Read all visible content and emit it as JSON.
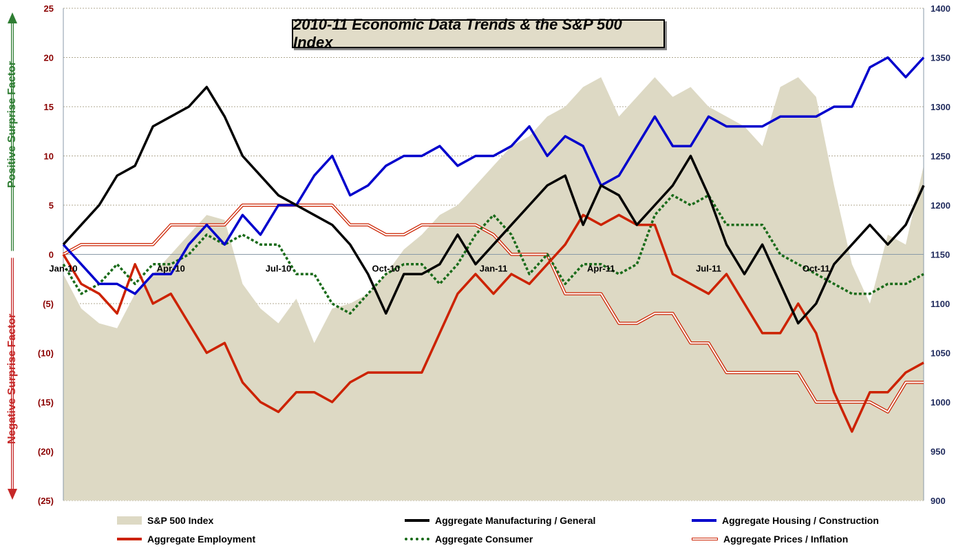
{
  "title": "2010-11 Economic Data Trends & the S&P 500 Index",
  "left_axis_positive_label": "Positive Surprise Factor",
  "left_axis_negative_label": "Negative Surprise Factor",
  "colors": {
    "sp500_fill": "#ddd9c4",
    "manufacturing": "#000000",
    "housing": "#0000cc",
    "employment": "#cc2200",
    "consumer": "#1a6b1a",
    "prices": "#cc2200",
    "positive_axis": "#2e7d32",
    "negative_axis": "#c62828",
    "left_ticks": "#8b0000",
    "right_ticks": "#1f2a5c"
  },
  "chart_data": {
    "type": "line",
    "x_tick_labels": [
      "Jan-10",
      "Apr-10",
      "Jul-10",
      "Oct-10",
      "Jan-11",
      "Apr-11",
      "Jul-11",
      "Oct-11"
    ],
    "y_left_ticks": [
      "25",
      "20",
      "15",
      "10",
      "5",
      "0",
      "(5)",
      "(10)",
      "(15)",
      "(20)",
      "(25)"
    ],
    "y_left_range": [
      -25,
      25
    ],
    "y_right_ticks": [
      "1400",
      "1350",
      "1300",
      "1250",
      "1200",
      "1150",
      "1100",
      "1050",
      "1000",
      "950",
      "900"
    ],
    "y_right_range": [
      900,
      1400
    ],
    "x_range_months": [
      0,
      24
    ],
    "series": [
      {
        "name": "S&P 500 Index",
        "type": "area",
        "axis": "right",
        "x": [
          0,
          0.5,
          1,
          1.5,
          2,
          2.5,
          3,
          3.5,
          4,
          4.5,
          5,
          5.5,
          6,
          6.5,
          7,
          7.5,
          8,
          8.5,
          9,
          9.5,
          10,
          10.5,
          11,
          11.5,
          12,
          12.5,
          13,
          13.5,
          14,
          14.5,
          15,
          15.5,
          16,
          16.5,
          17,
          17.5,
          18,
          18.5,
          19,
          19.5,
          20,
          20.5,
          21,
          21.5,
          22,
          22.5,
          23,
          23.5,
          24
        ],
        "values": [
          1130,
          1095,
          1080,
          1075,
          1110,
          1130,
          1150,
          1170,
          1190,
          1185,
          1120,
          1095,
          1080,
          1105,
          1060,
          1095,
          1100,
          1110,
          1130,
          1155,
          1170,
          1190,
          1200,
          1220,
          1240,
          1260,
          1270,
          1290,
          1300,
          1320,
          1330,
          1290,
          1310,
          1330,
          1310,
          1320,
          1300,
          1290,
          1280,
          1260,
          1320,
          1330,
          1310,
          1220,
          1140,
          1100,
          1170,
          1160,
          1240
        ]
      },
      {
        "name": "Aggregate Manufacturing / General",
        "axis": "left",
        "x": [
          0,
          0.5,
          1,
          1.5,
          2,
          2.5,
          3,
          3.5,
          4,
          4.5,
          5,
          5.5,
          6,
          6.5,
          7,
          7.5,
          8,
          8.5,
          9,
          9.5,
          10,
          10.5,
          11,
          11.5,
          12,
          12.5,
          13,
          13.5,
          14,
          14.5,
          15,
          15.5,
          16,
          16.5,
          17,
          17.5,
          18,
          18.5,
          19,
          19.5,
          20,
          20.5,
          21,
          21.5,
          22,
          22.5,
          23,
          23.5,
          24
        ],
        "values": [
          1,
          3,
          5,
          8,
          9,
          13,
          14,
          15,
          17,
          14,
          10,
          8,
          6,
          5,
          4,
          3,
          1,
          -2,
          -6,
          -2,
          -2,
          -1,
          2,
          -1,
          1,
          3,
          5,
          7,
          8,
          3,
          7,
          6,
          3,
          5,
          7,
          10,
          6,
          1,
          -2,
          1,
          -3,
          -7,
          -5,
          -1,
          1,
          3,
          1,
          3,
          7
        ]
      },
      {
        "name": "Aggregate Housing / Construction",
        "axis": "left",
        "x": [
          0,
          0.5,
          1,
          1.5,
          2,
          2.5,
          3,
          3.5,
          4,
          4.5,
          5,
          5.5,
          6,
          6.5,
          7,
          7.5,
          8,
          8.5,
          9,
          9.5,
          10,
          10.5,
          11,
          11.5,
          12,
          12.5,
          13,
          13.5,
          14,
          14.5,
          15,
          15.5,
          16,
          16.5,
          17,
          17.5,
          18,
          18.5,
          19,
          19.5,
          20,
          20.5,
          21,
          21.5,
          22,
          22.5,
          23,
          23.5,
          24
        ],
        "values": [
          1,
          -1,
          -3,
          -3,
          -4,
          -2,
          -2,
          1,
          3,
          1,
          4,
          2,
          5,
          5,
          8,
          10,
          6,
          7,
          9,
          10,
          10,
          11,
          9,
          10,
          10,
          11,
          13,
          10,
          12,
          11,
          7,
          8,
          11,
          14,
          11,
          11,
          14,
          13,
          13,
          13,
          14,
          14,
          14,
          15,
          15,
          19,
          20,
          18,
          20
        ]
      },
      {
        "name": "Aggregate Employment",
        "axis": "left",
        "x": [
          0,
          0.5,
          1,
          1.5,
          2,
          2.5,
          3,
          3.5,
          4,
          4.5,
          5,
          5.5,
          6,
          6.5,
          7,
          7.5,
          8,
          8.5,
          9,
          9.5,
          10,
          10.5,
          11,
          11.5,
          12,
          12.5,
          13,
          13.5,
          14,
          14.5,
          15,
          15.5,
          16,
          16.5,
          17,
          17.5,
          18,
          18.5,
          19,
          19.5,
          20,
          20.5,
          21,
          21.5,
          22,
          22.5,
          23,
          23.5,
          24
        ],
        "values": [
          0,
          -3,
          -4,
          -6,
          -1,
          -5,
          -4,
          -7,
          -10,
          -9,
          -13,
          -15,
          -16,
          -14,
          -14,
          -15,
          -13,
          -12,
          -12,
          -12,
          -12,
          -8,
          -4,
          -2,
          -4,
          -2,
          -3,
          -1,
          1,
          4,
          3,
          4,
          3,
          3,
          -2,
          -3,
          -4,
          -2,
          -5,
          -8,
          -8,
          -5,
          -8,
          -14,
          -18,
          -14,
          -14,
          -12,
          -11
        ]
      },
      {
        "name": "Aggregate Consumer",
        "axis": "left",
        "x": [
          0,
          0.5,
          1,
          1.5,
          2,
          2.5,
          3,
          3.5,
          4,
          4.5,
          5,
          5.5,
          6,
          6.5,
          7,
          7.5,
          8,
          8.5,
          9,
          9.5,
          10,
          10.5,
          11,
          11.5,
          12,
          12.5,
          13,
          13.5,
          14,
          14.5,
          15,
          15.5,
          16,
          16.5,
          17,
          17.5,
          18,
          18.5,
          19,
          19.5,
          20,
          20.5,
          21,
          21.5,
          22,
          22.5,
          23,
          23.5,
          24
        ],
        "values": [
          -1,
          -4,
          -3,
          -1,
          -3,
          -1,
          -1,
          0,
          2,
          1,
          2,
          1,
          1,
          -2,
          -2,
          -5,
          -6,
          -4,
          -2,
          -1,
          -1,
          -3,
          -1,
          2,
          4,
          2,
          -2,
          0,
          -3,
          -1,
          -1,
          -2,
          -1,
          4,
          6,
          5,
          6,
          3,
          3,
          3,
          0,
          -1,
          -2,
          -3,
          -4,
          -4,
          -3,
          -3,
          -2
        ]
      },
      {
        "name": "Aggregate Prices / Inflation",
        "axis": "left",
        "x": [
          0,
          0.5,
          1,
          1.5,
          2,
          2.5,
          3,
          3.5,
          4,
          4.5,
          5,
          5.5,
          6,
          6.5,
          7,
          7.5,
          8,
          8.5,
          9,
          9.5,
          10,
          10.5,
          11,
          11.5,
          12,
          12.5,
          13,
          13.5,
          14,
          14.5,
          15,
          15.5,
          16,
          16.5,
          17,
          17.5,
          18,
          18.5,
          19,
          19.5,
          20,
          20.5,
          21,
          21.5,
          22,
          22.5,
          23,
          23.5,
          24
        ],
        "values": [
          0,
          1,
          1,
          1,
          1,
          1,
          3,
          3,
          3,
          3,
          5,
          5,
          5,
          5,
          5,
          5,
          3,
          3,
          2,
          2,
          3,
          3,
          3,
          3,
          2,
          0,
          0,
          0,
          -4,
          -4,
          -4,
          -7,
          -7,
          -6,
          -6,
          -9,
          -9,
          -12,
          -12,
          -12,
          -12,
          -12,
          -15,
          -15,
          -15,
          -15,
          -16,
          -13,
          -13
        ]
      }
    ],
    "legend_position": "bottom"
  },
  "legend": [
    {
      "label": "S&P 500 Index",
      "style": "area"
    },
    {
      "label": "Aggregate Manufacturing / General",
      "style": "manufacturing"
    },
    {
      "label": "Aggregate Housing / Construction",
      "style": "housing"
    },
    {
      "label": "Aggregate Employment",
      "style": "employment"
    },
    {
      "label": "Aggregate Consumer",
      "style": "consumer"
    },
    {
      "label": "Aggregate Prices / Inflation",
      "style": "prices"
    }
  ]
}
